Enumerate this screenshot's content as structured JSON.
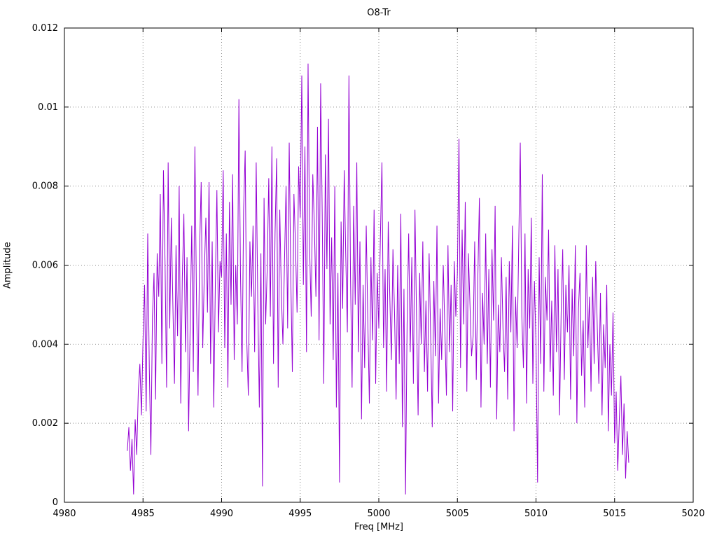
{
  "chart_data": {
    "type": "line",
    "title": "O8-Tr",
    "xlabel": "Freq [MHz]",
    "ylabel": "Amplitude",
    "xlim": [
      4980,
      5020
    ],
    "ylim": [
      0,
      0.012
    ],
    "xticks": [
      4980,
      4985,
      4990,
      4995,
      5000,
      5005,
      5010,
      5015,
      5020
    ],
    "xtick_labels": [
      "4980",
      "4985",
      "4990",
      "4995",
      "5000",
      "5005",
      "5010",
      "5015",
      "5020"
    ],
    "yticks": [
      0,
      0.002,
      0.004,
      0.006,
      0.008,
      0.01,
      0.012
    ],
    "ytick_labels": [
      "0",
      "0.002",
      "0.004",
      "0.006",
      "0.008",
      "0.01",
      "0.012"
    ],
    "grid": true,
    "legend": "none",
    "line_color": "#9400d3",
    "grid_color": "#8a8a8a",
    "border_color": "#000000",
    "series_name": "O8-Tr amplitude spectrum (noisy band 4984-5016 MHz, peak ~0.0111 near 4995.5 MHz)",
    "samples": {
      "x_start": 4984.0,
      "x_step": 0.1,
      "y_scale": 0.0001,
      "values": [
        13,
        19,
        8,
        16,
        2,
        21,
        12,
        28,
        35,
        22,
        41,
        55,
        23,
        68,
        34,
        12,
        47,
        58,
        26,
        63,
        52,
        78,
        35,
        84,
        61,
        29,
        86,
        44,
        72,
        50,
        30,
        65,
        42,
        80,
        25,
        57,
        73,
        38,
        62,
        18,
        45,
        70,
        33,
        90,
        52,
        27,
        64,
        81,
        39,
        58,
        72,
        48,
        81,
        35,
        66,
        24,
        55,
        79,
        43,
        61,
        57,
        84,
        39,
        68,
        29,
        76,
        50,
        83,
        36,
        60,
        45,
        102,
        58,
        33,
        74,
        89,
        41,
        27,
        66,
        52,
        70,
        38,
        86,
        51,
        24,
        63,
        4,
        77,
        45,
        59,
        82,
        47,
        90,
        35,
        68,
        87,
        29,
        74,
        53,
        40,
        61,
        80,
        44,
        91,
        57,
        33,
        78,
        65,
        48,
        85,
        72,
        108,
        55,
        90,
        38,
        111,
        64,
        47,
        83,
        70,
        52,
        95,
        41,
        106,
        73,
        30,
        88,
        59,
        97,
        45,
        67,
        36,
        80,
        24,
        58,
        5,
        71,
        49,
        84,
        62,
        43,
        108,
        57,
        29,
        75,
        50,
        86,
        38,
        66,
        21,
        55,
        34,
        70,
        46,
        25,
        62,
        41,
        74,
        30,
        58,
        44,
        67,
        86,
        39,
        59,
        28,
        71,
        52,
        36,
        64,
        48,
        26,
        60,
        35,
        73,
        19,
        54,
        2,
        45,
        68,
        38,
        62,
        30,
        74,
        47,
        22,
        58,
        40,
        66,
        33,
        51,
        28,
        63,
        42,
        19,
        56,
        37,
        70,
        25,
        49,
        36,
        60,
        44,
        27,
        65,
        38,
        55,
        23,
        61,
        47,
        58,
        92,
        34,
        69,
        45,
        76,
        28,
        63,
        50,
        37,
        42,
        66,
        31,
        57,
        77,
        24,
        53,
        40,
        68,
        35,
        59,
        29,
        64,
        46,
        75,
        21,
        50,
        38,
        62,
        44,
        33,
        57,
        26,
        61,
        43,
        70,
        18,
        52,
        39,
        65,
        91,
        47,
        34,
        68,
        25,
        59,
        44,
        72,
        30,
        56,
        40,
        5,
        62,
        35,
        83,
        28,
        57,
        46,
        69,
        33,
        51,
        27,
        65,
        38,
        59,
        22,
        48,
        64,
        31,
        55,
        43,
        60,
        26,
        54,
        37,
        65,
        20,
        49,
        58,
        32,
        46,
        24,
        65,
        39,
        52,
        28,
        57,
        35,
        61,
        44,
        30,
        53,
        22,
        45,
        34,
        55,
        18,
        40,
        27,
        48,
        15,
        28,
        8,
        21,
        32,
        12,
        25,
        6,
        18,
        10
      ]
    }
  }
}
